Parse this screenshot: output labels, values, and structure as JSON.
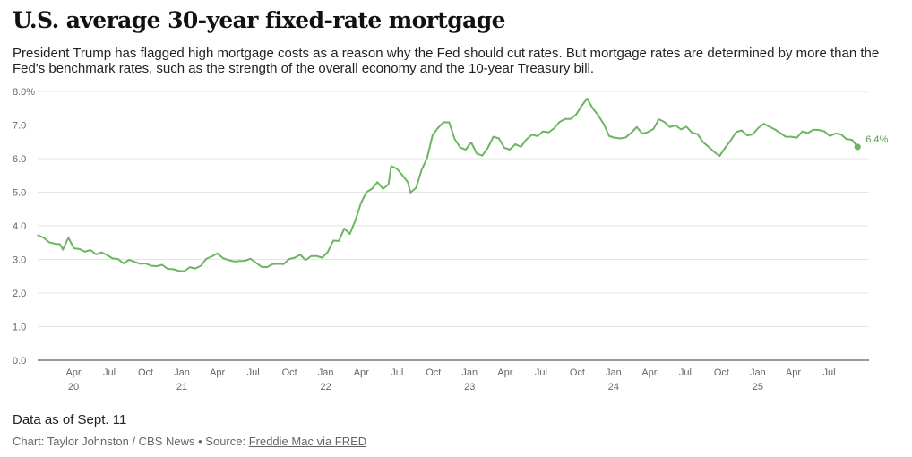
{
  "header": {
    "title": "U.S. average 30-year fixed-rate mortgage",
    "subtitle": "President Trump has flagged high mortgage costs as a reason why the Fed should cut rates. But mortgage rates are determined by more than the Fed's benchmark rates, such as the strength of the overall economy and the 10-year Treasury bill."
  },
  "footer": {
    "note": "Data as of Sept. 11",
    "credit": "Chart: Taylor Johnston / CBS News • Source: ",
    "source_link": "Freddie Mac via FRED"
  },
  "colors": {
    "line": "#6db562",
    "grid": "#e6e6e6",
    "axis": "#333333"
  },
  "chart_data": {
    "type": "line",
    "title": "U.S. average 30-year fixed-rate mortgage",
    "xlabel": "",
    "ylabel": "",
    "ylim": [
      0,
      8
    ],
    "xlim": [
      "2020-01-01",
      "2025-10-10"
    ],
    "grid": true,
    "y_ticks": [
      {
        "v": 0,
        "label": "0.0"
      },
      {
        "v": 1,
        "label": "1.0"
      },
      {
        "v": 2,
        "label": "2.0"
      },
      {
        "v": 3,
        "label": "3.0"
      },
      {
        "v": 4,
        "label": "4.0"
      },
      {
        "v": 5,
        "label": "5.0"
      },
      {
        "v": 6,
        "label": "6.0"
      },
      {
        "v": 7,
        "label": "7.0"
      },
      {
        "v": 8,
        "label": "8.0%"
      }
    ],
    "x_ticks": [
      {
        "date": "2020-04-01",
        "label": "Apr",
        "year": "20"
      },
      {
        "date": "2020-07-01",
        "label": "Jul",
        "year": ""
      },
      {
        "date": "2020-10-01",
        "label": "Oct",
        "year": ""
      },
      {
        "date": "2021-01-01",
        "label": "Jan",
        "year": "21"
      },
      {
        "date": "2021-04-01",
        "label": "Apr",
        "year": ""
      },
      {
        "date": "2021-07-01",
        "label": "Jul",
        "year": ""
      },
      {
        "date": "2021-10-01",
        "label": "Oct",
        "year": ""
      },
      {
        "date": "2022-01-01",
        "label": "Jan",
        "year": "22"
      },
      {
        "date": "2022-04-01",
        "label": "Apr",
        "year": ""
      },
      {
        "date": "2022-07-01",
        "label": "Jul",
        "year": ""
      },
      {
        "date": "2022-10-01",
        "label": "Oct",
        "year": ""
      },
      {
        "date": "2023-01-01",
        "label": "Jan",
        "year": "23"
      },
      {
        "date": "2023-04-01",
        "label": "Apr",
        "year": ""
      },
      {
        "date": "2023-07-01",
        "label": "Jul",
        "year": ""
      },
      {
        "date": "2023-10-01",
        "label": "Oct",
        "year": ""
      },
      {
        "date": "2024-01-01",
        "label": "Jan",
        "year": "24"
      },
      {
        "date": "2024-04-01",
        "label": "Apr",
        "year": ""
      },
      {
        "date": "2024-07-01",
        "label": "Jul",
        "year": ""
      },
      {
        "date": "2024-10-01",
        "label": "Oct",
        "year": ""
      },
      {
        "date": "2025-01-01",
        "label": "Jan",
        "year": "25"
      },
      {
        "date": "2025-04-01",
        "label": "Apr",
        "year": ""
      },
      {
        "date": "2025-07-01",
        "label": "Jul",
        "year": ""
      }
    ],
    "end_label": "6.4%",
    "series": [
      {
        "name": "",
        "points": [
          [
            "2020-01-02",
            3.72
          ],
          [
            "2020-01-16",
            3.65
          ],
          [
            "2020-01-30",
            3.51
          ],
          [
            "2020-02-13",
            3.47
          ],
          [
            "2020-02-27",
            3.45
          ],
          [
            "2020-03-05",
            3.29
          ],
          [
            "2020-03-19",
            3.65
          ],
          [
            "2020-04-02",
            3.33
          ],
          [
            "2020-04-16",
            3.31
          ],
          [
            "2020-04-30",
            3.23
          ],
          [
            "2020-05-14",
            3.28
          ],
          [
            "2020-05-28",
            3.15
          ],
          [
            "2020-06-11",
            3.21
          ],
          [
            "2020-06-25",
            3.13
          ],
          [
            "2020-07-09",
            3.03
          ],
          [
            "2020-07-23",
            3.01
          ],
          [
            "2020-08-06",
            2.88
          ],
          [
            "2020-08-20",
            2.99
          ],
          [
            "2020-09-03",
            2.93
          ],
          [
            "2020-09-17",
            2.87
          ],
          [
            "2020-10-01",
            2.88
          ],
          [
            "2020-10-15",
            2.81
          ],
          [
            "2020-10-29",
            2.8
          ],
          [
            "2020-11-12",
            2.84
          ],
          [
            "2020-11-26",
            2.72
          ],
          [
            "2020-12-10",
            2.71
          ],
          [
            "2020-12-24",
            2.66
          ],
          [
            "2021-01-07",
            2.65
          ],
          [
            "2021-01-21",
            2.77
          ],
          [
            "2021-02-04",
            2.73
          ],
          [
            "2021-02-18",
            2.81
          ],
          [
            "2021-03-04",
            3.02
          ],
          [
            "2021-03-18",
            3.09
          ],
          [
            "2021-04-01",
            3.18
          ],
          [
            "2021-04-15",
            3.04
          ],
          [
            "2021-04-29",
            2.98
          ],
          [
            "2021-05-13",
            2.94
          ],
          [
            "2021-05-27",
            2.95
          ],
          [
            "2021-06-10",
            2.96
          ],
          [
            "2021-06-24",
            3.02
          ],
          [
            "2021-07-08",
            2.9
          ],
          [
            "2021-07-22",
            2.78
          ],
          [
            "2021-08-05",
            2.77
          ],
          [
            "2021-08-19",
            2.86
          ],
          [
            "2021-09-02",
            2.87
          ],
          [
            "2021-09-16",
            2.86
          ],
          [
            "2021-09-30",
            3.01
          ],
          [
            "2021-10-14",
            3.05
          ],
          [
            "2021-10-28",
            3.14
          ],
          [
            "2021-11-11",
            2.98
          ],
          [
            "2021-11-25",
            3.1
          ],
          [
            "2021-12-09",
            3.1
          ],
          [
            "2021-12-23",
            3.05
          ],
          [
            "2022-01-06",
            3.22
          ],
          [
            "2022-01-20",
            3.56
          ],
          [
            "2022-02-03",
            3.55
          ],
          [
            "2022-02-17",
            3.92
          ],
          [
            "2022-03-03",
            3.76
          ],
          [
            "2022-03-17",
            4.16
          ],
          [
            "2022-03-31",
            4.67
          ],
          [
            "2022-04-14",
            5.0
          ],
          [
            "2022-04-28",
            5.1
          ],
          [
            "2022-05-12",
            5.3
          ],
          [
            "2022-05-26",
            5.1
          ],
          [
            "2022-06-09",
            5.23
          ],
          [
            "2022-06-16",
            5.78
          ],
          [
            "2022-06-30",
            5.7
          ],
          [
            "2022-07-14",
            5.51
          ],
          [
            "2022-07-28",
            5.3
          ],
          [
            "2022-08-04",
            4.99
          ],
          [
            "2022-08-18",
            5.13
          ],
          [
            "2022-09-01",
            5.66
          ],
          [
            "2022-09-15",
            6.02
          ],
          [
            "2022-09-29",
            6.7
          ],
          [
            "2022-10-13",
            6.92
          ],
          [
            "2022-10-27",
            7.08
          ],
          [
            "2022-11-10",
            7.08
          ],
          [
            "2022-11-24",
            6.58
          ],
          [
            "2022-12-08",
            6.33
          ],
          [
            "2022-12-22",
            6.27
          ],
          [
            "2023-01-05",
            6.48
          ],
          [
            "2023-01-19",
            6.15
          ],
          [
            "2023-02-02",
            6.09
          ],
          [
            "2023-02-16",
            6.32
          ],
          [
            "2023-03-02",
            6.65
          ],
          [
            "2023-03-16",
            6.6
          ],
          [
            "2023-03-30",
            6.32
          ],
          [
            "2023-04-13",
            6.27
          ],
          [
            "2023-04-27",
            6.43
          ],
          [
            "2023-05-11",
            6.35
          ],
          [
            "2023-05-25",
            6.57
          ],
          [
            "2023-06-08",
            6.71
          ],
          [
            "2023-06-22",
            6.67
          ],
          [
            "2023-07-06",
            6.81
          ],
          [
            "2023-07-20",
            6.78
          ],
          [
            "2023-08-03",
            6.9
          ],
          [
            "2023-08-17",
            7.09
          ],
          [
            "2023-08-31",
            7.18
          ],
          [
            "2023-09-14",
            7.18
          ],
          [
            "2023-09-28",
            7.31
          ],
          [
            "2023-10-12",
            7.57
          ],
          [
            "2023-10-26",
            7.79
          ],
          [
            "2023-11-09",
            7.5
          ],
          [
            "2023-11-23",
            7.29
          ],
          [
            "2023-12-07",
            7.03
          ],
          [
            "2023-12-21",
            6.67
          ],
          [
            "2024-01-04",
            6.62
          ],
          [
            "2024-01-18",
            6.6
          ],
          [
            "2024-02-01",
            6.63
          ],
          [
            "2024-02-15",
            6.77
          ],
          [
            "2024-02-29",
            6.94
          ],
          [
            "2024-03-14",
            6.74
          ],
          [
            "2024-03-28",
            6.79
          ],
          [
            "2024-04-11",
            6.88
          ],
          [
            "2024-04-25",
            7.17
          ],
          [
            "2024-05-09",
            7.09
          ],
          [
            "2024-05-23",
            6.94
          ],
          [
            "2024-06-06",
            6.99
          ],
          [
            "2024-06-20",
            6.87
          ],
          [
            "2024-07-04",
            6.95
          ],
          [
            "2024-07-18",
            6.77
          ],
          [
            "2024-08-01",
            6.73
          ],
          [
            "2024-08-15",
            6.49
          ],
          [
            "2024-08-29",
            6.35
          ],
          [
            "2024-09-12",
            6.2
          ],
          [
            "2024-09-26",
            6.08
          ],
          [
            "2024-10-10",
            6.32
          ],
          [
            "2024-10-24",
            6.54
          ],
          [
            "2024-11-07",
            6.79
          ],
          [
            "2024-11-21",
            6.84
          ],
          [
            "2024-12-05",
            6.69
          ],
          [
            "2024-12-19",
            6.72
          ],
          [
            "2025-01-02",
            6.91
          ],
          [
            "2025-01-16",
            7.04
          ],
          [
            "2025-01-30",
            6.95
          ],
          [
            "2025-02-13",
            6.87
          ],
          [
            "2025-02-27",
            6.76
          ],
          [
            "2025-03-13",
            6.65
          ],
          [
            "2025-03-27",
            6.65
          ],
          [
            "2025-04-10",
            6.62
          ],
          [
            "2025-04-24",
            6.81
          ],
          [
            "2025-05-08",
            6.76
          ],
          [
            "2025-05-22",
            6.86
          ],
          [
            "2025-06-05",
            6.85
          ],
          [
            "2025-06-19",
            6.81
          ],
          [
            "2025-07-03",
            6.67
          ],
          [
            "2025-07-17",
            6.75
          ],
          [
            "2025-07-31",
            6.72
          ],
          [
            "2025-08-14",
            6.58
          ],
          [
            "2025-08-28",
            6.56
          ],
          [
            "2025-09-11",
            6.35
          ]
        ]
      }
    ]
  }
}
